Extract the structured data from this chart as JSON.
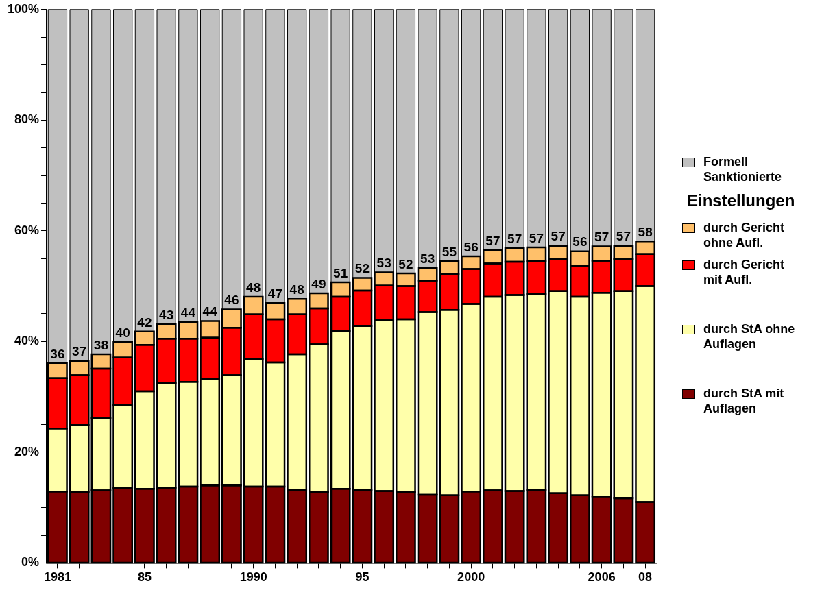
{
  "chart_data": {
    "type": "bar",
    "stacked": true,
    "legend": "right",
    "legend_title": "Einstellungen",
    "grid": false,
    "data_labels": false,
    "categories": [
      "1981",
      null,
      null,
      null,
      "85",
      null,
      null,
      null,
      null,
      "1990",
      null,
      null,
      null,
      null,
      "95",
      null,
      null,
      null,
      null,
      "2000",
      null,
      null,
      null,
      null,
      null,
      "2006",
      null,
      "08"
    ],
    "ylim": [
      0,
      100
    ],
    "yticks": [
      {
        "value": 0,
        "label": "0%"
      },
      {
        "value": 5,
        "label": null
      },
      {
        "value": 10,
        "label": null
      },
      {
        "value": 15,
        "label": null
      },
      {
        "value": 20,
        "label": "20%"
      },
      {
        "value": 25,
        "label": null
      },
      {
        "value": 30,
        "label": null
      },
      {
        "value": 35,
        "label": null
      },
      {
        "value": 40,
        "label": "40%"
      },
      {
        "value": 45,
        "label": null
      },
      {
        "value": 50,
        "label": null
      },
      {
        "value": 55,
        "label": null
      },
      {
        "value": 60,
        "label": "60%"
      },
      {
        "value": 65,
        "label": null
      },
      {
        "value": 70,
        "label": null
      },
      {
        "value": 75,
        "label": null
      },
      {
        "value": 80,
        "label": "80%"
      },
      {
        "value": 85,
        "label": null
      },
      {
        "value": 90,
        "label": null
      },
      {
        "value": 95,
        "label": null
      },
      {
        "value": 100,
        "label": "100%"
      }
    ],
    "series": [
      {
        "name": "durch StA mit Auflagen",
        "color": "#800000",
        "values": [
          12.9,
          12.8,
          13.1,
          13.5,
          13.4,
          13.6,
          13.8,
          14.0,
          14.0,
          13.8,
          13.8,
          13.2,
          12.8,
          13.4,
          13.2,
          13.0,
          12.8,
          12.3,
          12.2,
          12.9,
          13.1,
          13.0,
          13.2,
          12.6,
          12.2,
          11.9,
          11.7,
          11.0
        ]
      },
      {
        "name": "durch StA ohne Auflagen",
        "color": "#ffffaa",
        "values": [
          11.4,
          12.1,
          13.1,
          15.0,
          17.6,
          18.9,
          18.9,
          19.2,
          19.9,
          23.0,
          22.4,
          24.5,
          26.7,
          28.5,
          29.6,
          30.9,
          31.2,
          33.0,
          33.5,
          33.9,
          35.0,
          35.4,
          35.4,
          36.5,
          35.9,
          36.9,
          37.4,
          39.0
        ]
      },
      {
        "name": "durch Gericht mit Aufl.",
        "color": "#ff0000",
        "values": [
          9.1,
          9.0,
          8.9,
          8.6,
          8.4,
          8.0,
          7.8,
          7.5,
          8.6,
          8.1,
          7.8,
          7.2,
          6.5,
          6.2,
          6.4,
          6.2,
          6.0,
          5.7,
          6.5,
          6.3,
          6.0,
          6.0,
          5.9,
          5.8,
          5.6,
          5.8,
          5.8,
          5.8
        ]
      },
      {
        "name": "durch Gericht ohne Aufl.",
        "color": "#ffc06a",
        "values": [
          2.7,
          2.6,
          2.6,
          2.8,
          2.4,
          2.6,
          3.0,
          3.0,
          3.3,
          3.2,
          3.0,
          2.8,
          2.7,
          2.6,
          2.3,
          2.4,
          2.3,
          2.3,
          2.3,
          2.3,
          2.4,
          2.5,
          2.5,
          2.4,
          2.6,
          2.6,
          2.4,
          2.3
        ]
      },
      {
        "name": "Formell Sanktionierte",
        "color": "#c0c0c0",
        "values": [
          63.9,
          63.5,
          62.3,
          60.1,
          58.2,
          56.9,
          56.5,
          56.3,
          54.2,
          51.9,
          53.0,
          52.3,
          51.3,
          49.3,
          48.5,
          47.5,
          47.7,
          46.7,
          45.5,
          44.6,
          43.5,
          43.1,
          43.0,
          42.7,
          43.7,
          42.8,
          42.7,
          41.9
        ]
      }
    ],
    "annotations": [
      {
        "text": "36",
        "x": "1981",
        "y": 36.1
      },
      {
        "text": "37",
        "y": 36.5
      },
      {
        "text": "38",
        "y": 37.7
      },
      {
        "text": "40",
        "y": 39.9
      },
      {
        "text": "42",
        "x": "85",
        "y": 41.8
      },
      {
        "text": "43",
        "y": 43.1
      },
      {
        "text": "44",
        "y": 43.5
      },
      {
        "text": "44",
        "y": 43.7
      },
      {
        "text": "46",
        "y": 45.8
      },
      {
        "text": "48",
        "x": "1990",
        "y": 48.1
      },
      {
        "text": "47",
        "y": 47.0
      },
      {
        "text": "48",
        "y": 47.7
      },
      {
        "text": "49",
        "y": 48.7
      },
      {
        "text": "51",
        "y": 50.7
      },
      {
        "text": "52",
        "x": "95",
        "y": 51.5
      },
      {
        "text": "53",
        "y": 52.5
      },
      {
        "text": "52",
        "y": 52.3
      },
      {
        "text": "53",
        "y": 53.3
      },
      {
        "text": "55",
        "y": 54.5
      },
      {
        "text": "56",
        "x": "2000",
        "y": 55.4
      },
      {
        "text": "57",
        "y": 56.5
      },
      {
        "text": "57",
        "y": 56.9
      },
      {
        "text": "57",
        "y": 57.0
      },
      {
        "text": "57",
        "y": 57.3
      },
      {
        "text": "56",
        "y": 56.3
      },
      {
        "text": "57",
        "x": "2006",
        "y": 57.2
      },
      {
        "text": "57",
        "y": 57.3
      },
      {
        "text": "58",
        "x": "08",
        "y": 58.1
      }
    ]
  }
}
